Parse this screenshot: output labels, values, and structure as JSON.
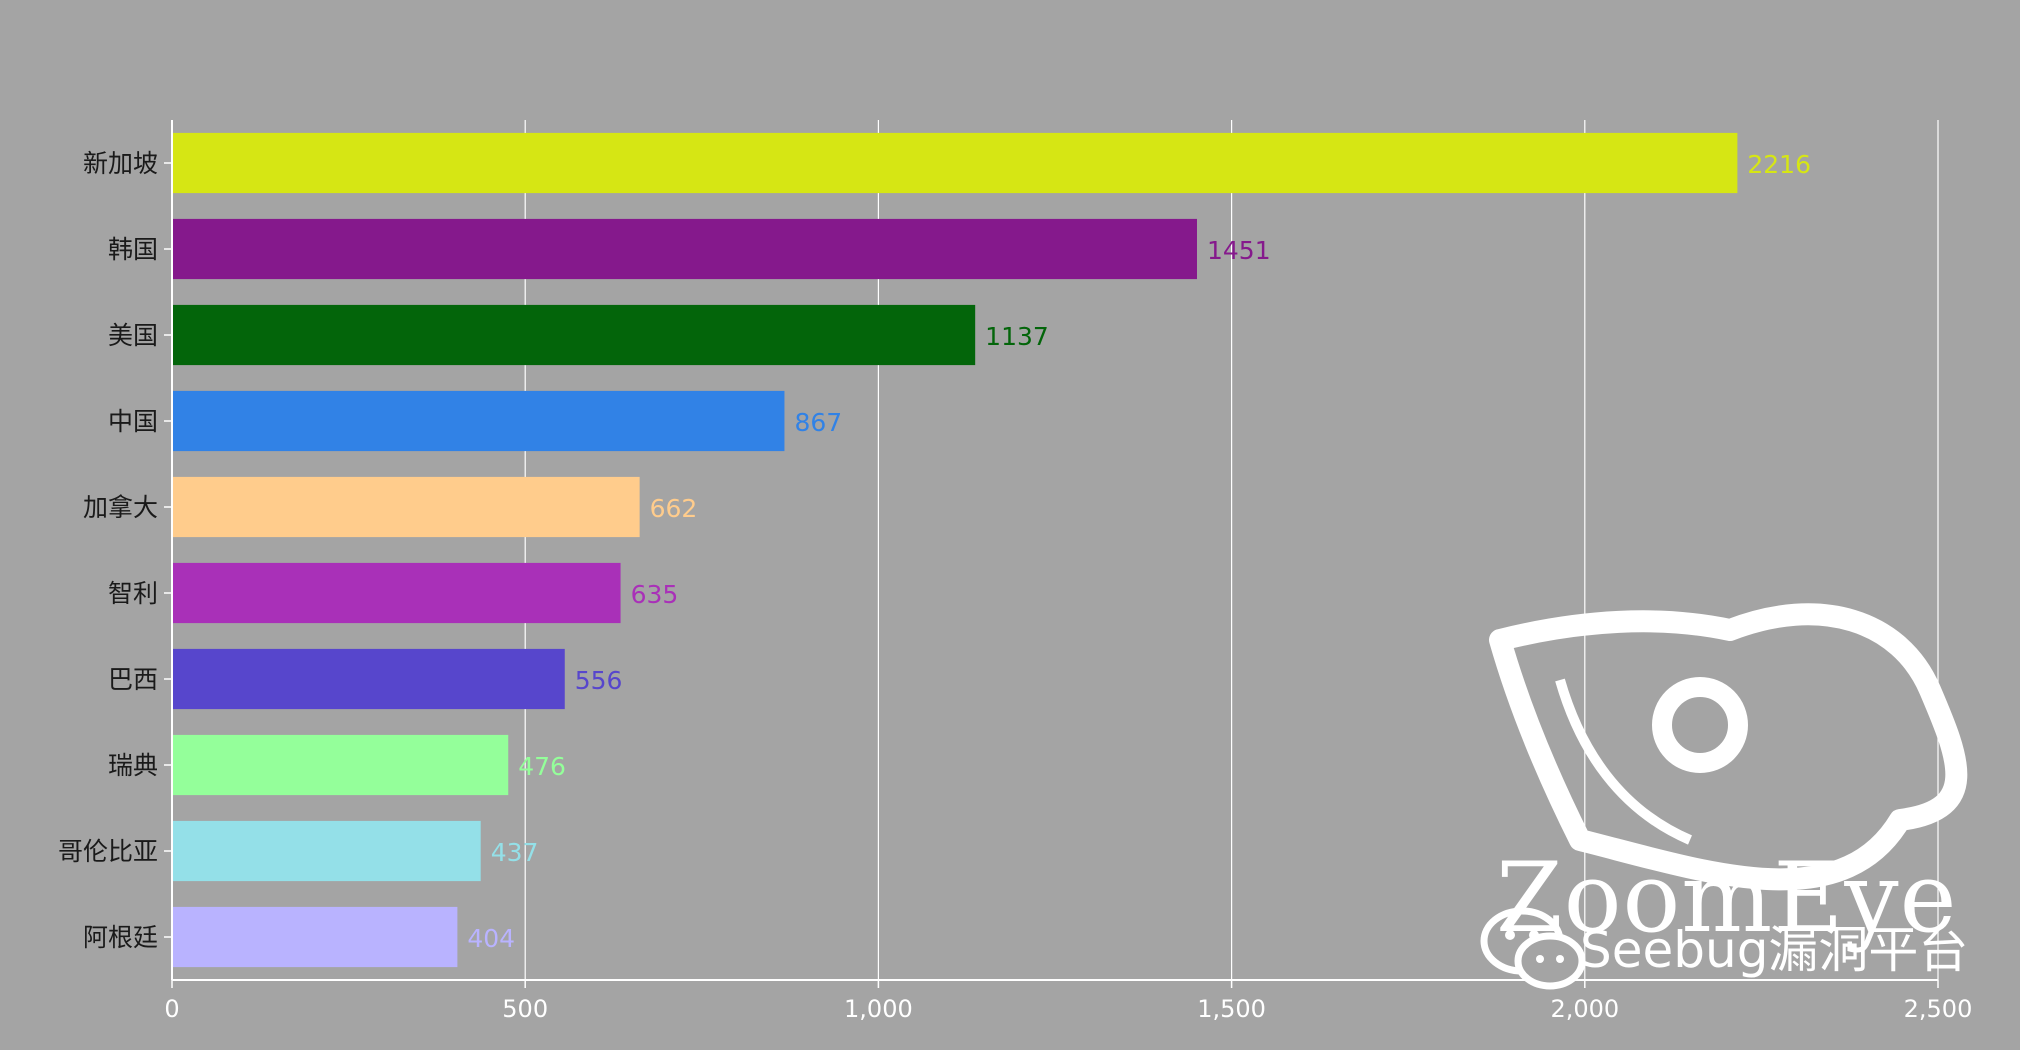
{
  "chart_data": {
    "type": "bar",
    "orientation": "horizontal",
    "categories": [
      "新加坡",
      "韩国",
      "美国",
      "中国",
      "加拿大",
      "智利",
      "巴西",
      "瑞典",
      "哥伦比亚",
      "阿根廷"
    ],
    "values": [
      2216,
      1451,
      1137,
      867,
      662,
      635,
      556,
      476,
      437,
      404
    ],
    "colors": [
      "#d6e614",
      "#85198c",
      "#03650a",
      "#3182e6",
      "#ffcc8c",
      "#a930b8",
      "#5746cc",
      "#94ff9a",
      "#94e0e8",
      "#b9b3ff"
    ],
    "x_ticks": [
      "0",
      "500",
      "1,000",
      "1,500",
      "2,000",
      "2,500"
    ],
    "x_tick_values": [
      0,
      500,
      1000,
      1500,
      2000,
      2500
    ],
    "xlim": [
      0,
      2500
    ],
    "grid": true,
    "title": "",
    "xlabel": "",
    "ylabel": ""
  },
  "watermark": {
    "brand": "ZoomEye",
    "caption": "Seebug漏洞平台",
    "icons": [
      "eye-logo-icon",
      "wechat-icon"
    ]
  }
}
